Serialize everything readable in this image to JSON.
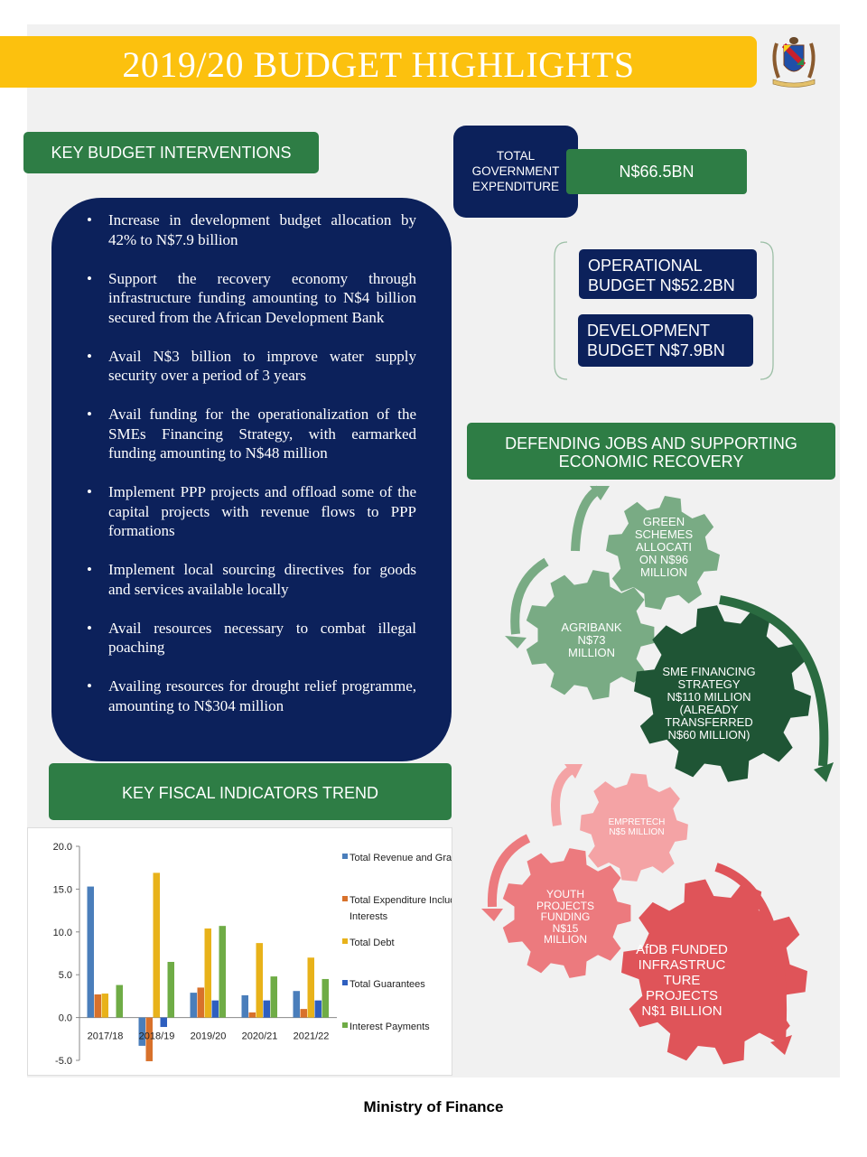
{
  "title": "2019/20 BUDGET HIGHLIGHTS",
  "key_interventions": {
    "heading": "KEY BUDGET INTERVENTIONS",
    "items": [
      "Increase in development budget allocation by 42% to N$7.9 billion",
      "Support the recovery economy through infrastructure funding amounting to N$4 billion secured from the African Development Bank",
      "Avail N$3 billion to improve water supply security over a period of 3 years",
      "Avail funding for the operationalization of the SMEs Financing Strategy, with earmarked funding amounting to N$48 million",
      "Implement PPP projects and offload some of the capital projects with revenue flows to PPP formations",
      "Implement local sourcing directives for goods and services available locally",
      "Avail resources necessary to combat illegal poaching",
      "Availing resources for drought relief programme, amounting to N$304 million"
    ]
  },
  "expenditure": {
    "label_lines": [
      "TOTAL",
      "GOVERNMENT",
      "EXPENDITURE"
    ],
    "total": "N$66.5BN",
    "operational_lines": [
      "OPERATIONAL",
      "BUDGET N$52.2BN"
    ],
    "development_lines": [
      "DEVELOPMENT",
      "BUDGET N$7.9BN"
    ]
  },
  "jobs": {
    "heading_lines": [
      "DEFENDING JOBS AND SUPPORTING",
      "ECONOMIC RECOVERY"
    ],
    "gears": [
      {
        "lines": [
          "GREEN",
          "SCHEMES",
          "ALLOCATI",
          "ON N$96",
          "MILLION"
        ],
        "color": "#79ab84"
      },
      {
        "lines": [
          "AGRIBANK",
          "N$73",
          "MILLION"
        ],
        "color": "#79ab84"
      },
      {
        "lines": [
          "SME FINANCING",
          "STRATEGY",
          "N$110 MILLION",
          "(ALREADY",
          "TRANSFERRED",
          "N$60 MILLION)"
        ],
        "color": "#1f5535"
      },
      {
        "lines": [
          "EMPRETECH",
          "N$5 MILLION"
        ],
        "color": "#f4a3a5"
      },
      {
        "lines": [
          "YOUTH",
          "PROJECTS",
          "FUNDING",
          "N$15",
          "MILLION"
        ],
        "color": "#ec7a7e"
      },
      {
        "lines": [
          "AfDB FUNDED",
          "INFRASTRUC",
          "TURE",
          "PROJECTS",
          "N$1 BILLION"
        ],
        "color": "#df5459"
      }
    ]
  },
  "fiscal": {
    "heading": "KEY FISCAL INDICATORS TREND"
  },
  "chart_data": {
    "type": "bar",
    "categories": [
      "2017/18",
      "2018/19",
      "2019/20",
      "2020/21",
      "2021/22"
    ],
    "series": [
      {
        "name": "Total Revenue and Grants",
        "values": [
          15.3,
          -3.3,
          2.9,
          2.6,
          3.1
        ],
        "color": "#4a7ebb"
      },
      {
        "name": "Total Expenditure Including Interests",
        "values": [
          2.7,
          -5.1,
          3.5,
          0.6,
          1.0
        ],
        "color": "#d8712b"
      },
      {
        "name": "Total Debt",
        "values": [
          2.8,
          16.9,
          10.4,
          8.7,
          7.0
        ],
        "color": "#e8b21a"
      },
      {
        "name": "Total Guarantees",
        "values": [
          0.0,
          -1.1,
          2.0,
          2.0,
          2.0
        ],
        "color": "#2e5fbf"
      },
      {
        "name": "Interest Payments",
        "values": [
          3.8,
          6.5,
          10.7,
          4.8,
          4.5
        ],
        "color": "#6fac46"
      }
    ],
    "legend_lines": [
      [
        "Total Revenue and Grants"
      ],
      [
        "Total Expenditure Including",
        "Interests"
      ],
      [
        "Total Debt"
      ],
      [
        "Total Guarantees"
      ],
      [
        "Interest Payments"
      ]
    ],
    "yticks": [
      "20.0",
      "15.0",
      "10.0",
      "5.0",
      "0.0",
      "-5.0"
    ],
    "ylim": [
      -5,
      20
    ],
    "legend_position": "right"
  },
  "footer": "Ministry of Finance"
}
